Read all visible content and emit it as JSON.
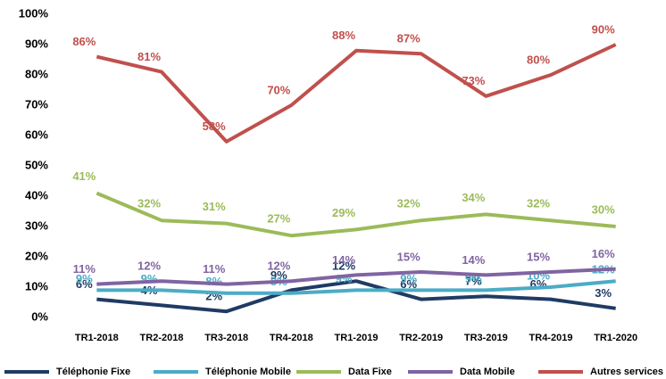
{
  "chart_data": {
    "type": "line",
    "categories": [
      "TR1-2018",
      "TR2-2018",
      "TR3-2018",
      "TR4-2018",
      "TR1-2019",
      "TR2-2019",
      "TR3-2019",
      "TR4-2019",
      "TR1-2020"
    ],
    "series": [
      {
        "name": "Téléphonie Fixe",
        "color": "#1f3b64",
        "values": [
          6,
          4,
          2,
          9,
          12,
          6,
          7,
          6,
          3
        ],
        "value_labels": [
          "6%",
          "4%",
          "2%",
          "9%",
          "12%",
          "6%",
          "7%",
          "6%",
          "3%"
        ]
      },
      {
        "name": "Téléphonie Mobile",
        "color": "#4bacc6",
        "values": [
          9,
          9,
          8,
          8,
          9,
          9,
          9,
          10,
          12
        ],
        "value_labels": [
          "9%",
          "9%",
          "8%",
          "8%",
          "9%",
          "9%",
          "9%",
          "10%",
          "12%"
        ]
      },
      {
        "name": "Data Fixe",
        "color": "#9bbb59",
        "values": [
          41,
          32,
          31,
          27,
          29,
          32,
          34,
          32,
          30
        ],
        "value_labels": [
          "41%",
          "32%",
          "31%",
          "27%",
          "29%",
          "32%",
          "34%",
          "32%",
          "30%"
        ]
      },
      {
        "name": "Data Mobile",
        "color": "#8064a2",
        "values": [
          11,
          12,
          11,
          12,
          14,
          15,
          14,
          15,
          16
        ],
        "value_labels": [
          "11%",
          "12%",
          "11%",
          "12%",
          "14%",
          "15%",
          "14%",
          "15%",
          "16%"
        ]
      },
      {
        "name": "Autres services",
        "color": "#c0504d",
        "values": [
          86,
          81,
          58,
          70,
          88,
          87,
          73,
          80,
          90
        ],
        "value_labels": [
          "86%",
          "81%",
          "58%",
          "70%",
          "88%",
          "87%",
          "73%",
          "80%",
          "90%"
        ]
      }
    ],
    "ylim": [
      0,
      100
    ],
    "yticks": [
      {
        "value": 0,
        "label": "0%"
      },
      {
        "value": 10,
        "label": "10%"
      },
      {
        "value": 20,
        "label": "20%"
      },
      {
        "value": 30,
        "label": "30%"
      },
      {
        "value": 40,
        "label": "40%"
      },
      {
        "value": 50,
        "label": "50%"
      },
      {
        "value": 60,
        "label": "60%"
      },
      {
        "value": 70,
        "label": "70%"
      },
      {
        "value": 80,
        "label": "80%"
      },
      {
        "value": 90,
        "label": "90%"
      },
      {
        "value": 100,
        "label": "100%"
      }
    ],
    "grid": false,
    "legend": "bottom"
  }
}
